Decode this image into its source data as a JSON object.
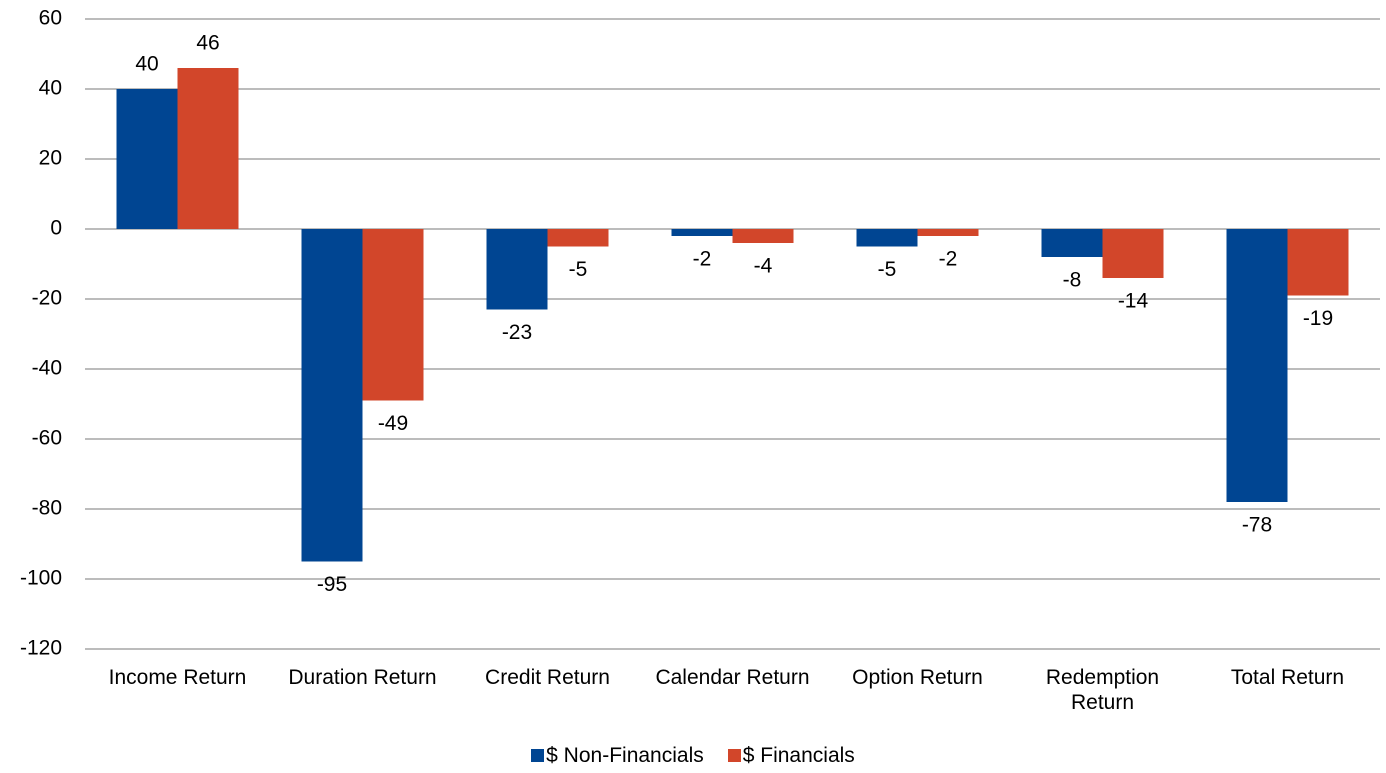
{
  "chart_data": {
    "type": "bar",
    "categories": [
      "Income Return",
      "Duration Return",
      "Credit Return",
      "Calendar Return",
      "Option Return",
      "Redemption Return",
      "Total Return"
    ],
    "series": [
      {
        "name": "$ Non-Financials",
        "color": "#004592",
        "values": [
          40,
          -95,
          -23,
          -2,
          -5,
          -8,
          -78
        ]
      },
      {
        "name": "$ Financials",
        "color": "#d2462a",
        "values": [
          46,
          -49,
          -5,
          -4,
          -2,
          -14,
          -19
        ]
      }
    ],
    "ylim": [
      -120,
      60
    ],
    "yticks": [
      -120,
      -100,
      -80,
      -60,
      -40,
      -20,
      0,
      20,
      40,
      60
    ],
    "grid": true,
    "legend": "bottom"
  }
}
